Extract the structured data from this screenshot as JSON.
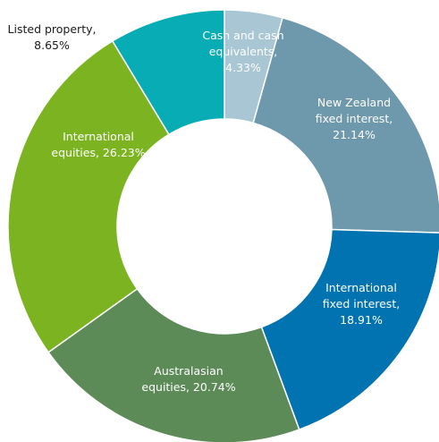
{
  "chart_data": {
    "type": "donut",
    "title": "",
    "unit": "%",
    "slices": [
      {
        "label_lines": [
          "Cash and cash",
          "equivalents,",
          "4.33%"
        ],
        "category": "Cash and cash equivalents",
        "value": 4.33,
        "color": "#a8c6d3",
        "label_color": "#ffffff"
      },
      {
        "label_lines": [
          "New Zealand",
          "fixed interest,",
          "21.14%"
        ],
        "category": "New Zealand fixed interest",
        "value": 21.14,
        "color": "#6e98ab",
        "label_color": "#ffffff"
      },
      {
        "label_lines": [
          "International",
          "fixed interest,",
          "18.91%"
        ],
        "category": "International fixed interest",
        "value": 18.91,
        "color": "#0173b0",
        "label_color": "#ffffff"
      },
      {
        "label_lines": [
          "Australasian",
          "equities, 20.74%"
        ],
        "category": "Australasian equities",
        "value": 20.74,
        "color": "#5d8b58",
        "label_color": "#ffffff"
      },
      {
        "label_lines": [
          "International",
          "equities, 26.23%"
        ],
        "category": "International equities",
        "value": 26.23,
        "color": "#7bb420",
        "label_color": "#ffffff"
      },
      {
        "label_lines": [
          "Listed property,",
          "8.65%"
        ],
        "category": "Listed property",
        "value": 8.65,
        "color": "#07acb5",
        "label_color": "#1a1a1a"
      }
    ]
  }
}
